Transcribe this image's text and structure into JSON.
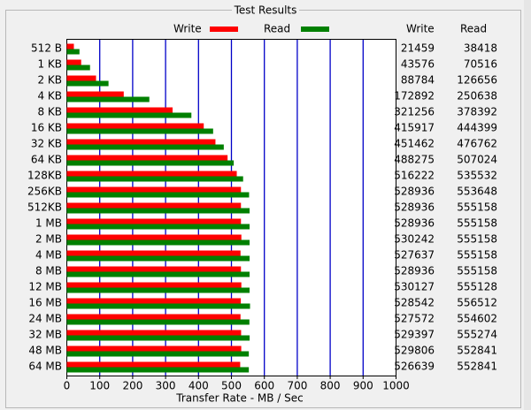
{
  "chart_data": {
    "type": "hbar",
    "title": "Test Results",
    "x_label": "Transfer Rate - MB / Sec",
    "categories": [
      "512 B",
      "1 KB",
      "2 KB",
      "4 KB",
      "8 KB",
      "16 KB",
      "32 KB",
      "64 KB",
      "128KB",
      "256KB",
      "512KB",
      "1 MB",
      "2 MB",
      "4 MB",
      "8 MB",
      "12 MB",
      "16 MB",
      "24 MB",
      "32 MB",
      "48 MB",
      "64 MB"
    ],
    "series": [
      {
        "name": "Write",
        "color": "#ff0000",
        "values": [
          21.459,
          43.576,
          88.784,
          172.892,
          321.256,
          415.917,
          451.462,
          488.275,
          516.222,
          528.936,
          528.936,
          528.936,
          530.242,
          527.637,
          528.936,
          530.127,
          528.542,
          527.572,
          529.397,
          529.806,
          526.639
        ],
        "value_labels": [
          "21459",
          "43576",
          "88784",
          "172892",
          "321256",
          "415917",
          "451462",
          "488275",
          "516222",
          "528936",
          "528936",
          "528936",
          "530242",
          "527637",
          "528936",
          "530127",
          "528542",
          "527572",
          "529397",
          "529806",
          "526639"
        ]
      },
      {
        "name": "Read",
        "color": "#008000",
        "values": [
          38.418,
          70.516,
          126.656,
          250.638,
          378.392,
          444.399,
          476.762,
          507.024,
          535.532,
          553.648,
          555.158,
          555.158,
          555.158,
          555.158,
          555.158,
          555.128,
          556.512,
          554.602,
          555.274,
          552.841,
          552.841
        ],
        "value_labels": [
          "38418",
          "70516",
          "126656",
          "250638",
          "378392",
          "444399",
          "476762",
          "507024",
          "535532",
          "553648",
          "555158",
          "555158",
          "555158",
          "555158",
          "555158",
          "555128",
          "556512",
          "554602",
          "555274",
          "552841",
          "552841"
        ]
      }
    ],
    "xlim": [
      0,
      1000
    ],
    "xticks": [
      0,
      100,
      200,
      300,
      400,
      500,
      600,
      700,
      800,
      900,
      1000
    ],
    "grid": true,
    "grid_color": "#0000c8"
  }
}
